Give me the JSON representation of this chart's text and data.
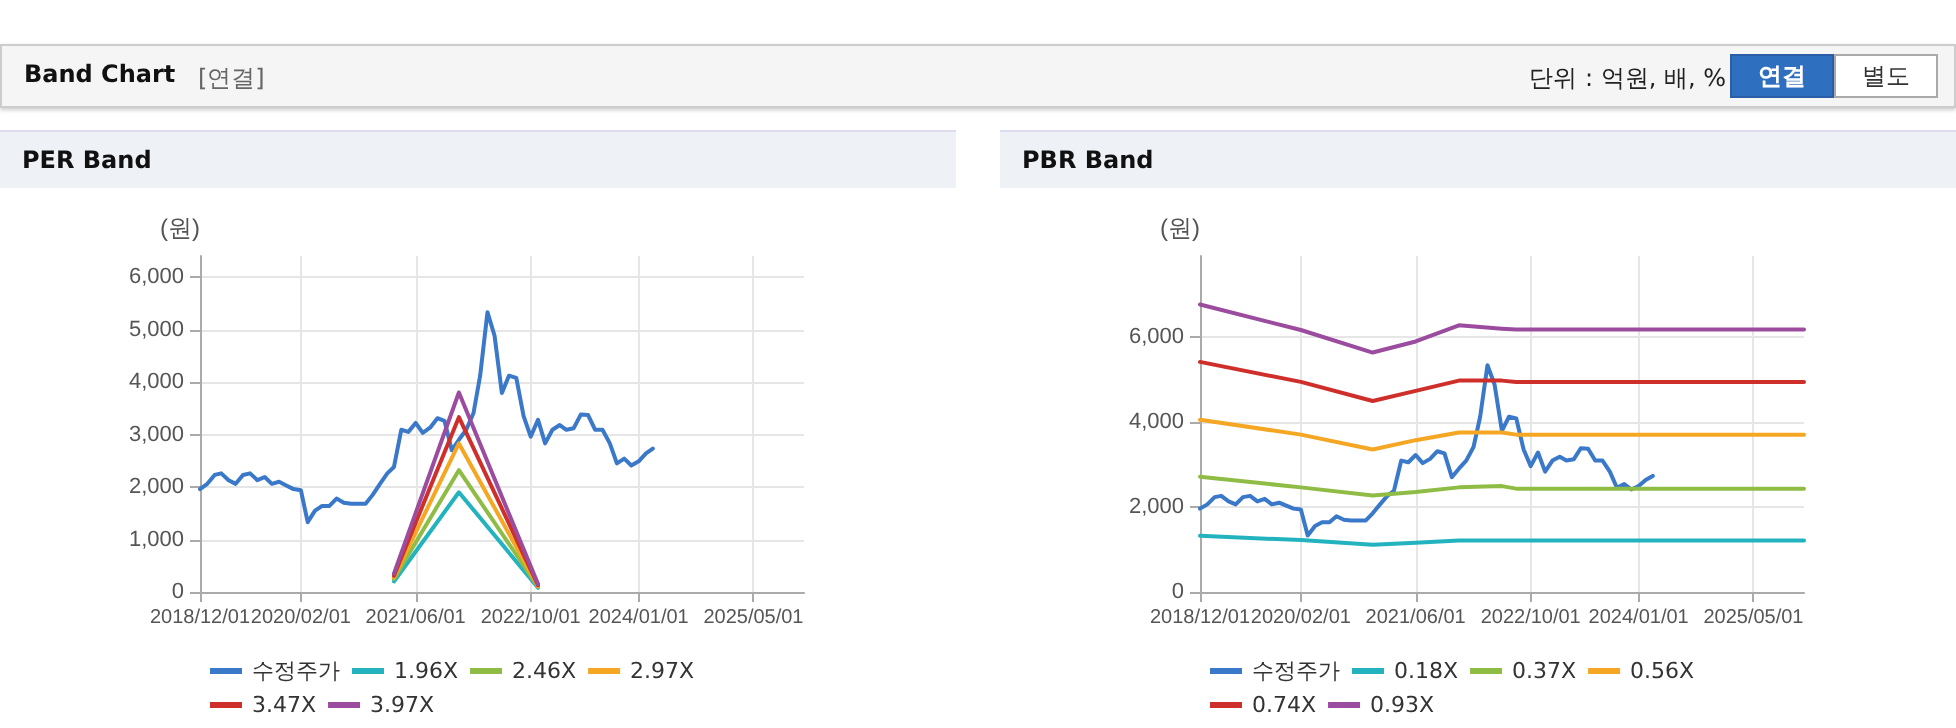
{
  "chart_data": [
    {
      "type": "other",
      "title": "Band Chart",
      "annotations": [
        "[연결]",
        "단위 : 억원, 배, %",
        "연결",
        "별도"
      ]
    },
    {
      "type": "line",
      "title": "PER Band",
      "ylabel": "(원)",
      "xlim": [
        "2018-12-01",
        "2025-12-01"
      ],
      "xticks": [
        {
          "value": "2018-12-01",
          "label": "2018/12/01"
        },
        {
          "value": "2020-02-01",
          "label": "2020/02/01"
        },
        {
          "value": "2021-06-01",
          "label": "2021/06/01"
        },
        {
          "value": "2022-10-01",
          "label": "2022/10/01"
        },
        {
          "value": "2024-01-01",
          "label": "2024/01/01"
        },
        {
          "value": "2025-05-01",
          "label": "2025/05/01"
        }
      ],
      "ylim": [
        0,
        6400
      ],
      "yticks": [
        {
          "value": 0,
          "label": "0"
        },
        {
          "value": 1000,
          "label": "1,000"
        },
        {
          "value": 2000,
          "label": "2,000"
        },
        {
          "value": 3000,
          "label": "3,000"
        },
        {
          "value": 4000,
          "label": "4,000"
        },
        {
          "value": 5000,
          "label": "5,000"
        },
        {
          "value": 6000,
          "label": "6,000"
        }
      ],
      "grid": true,
      "legend": "bottom",
      "marker": "none",
      "line_style": "solid",
      "series": [
        {
          "name": "수정주가",
          "color": "#3a78c9",
          "x": [
            "2018-12",
            "2019-01",
            "2019-02",
            "2019-03",
            "2019-04",
            "2019-05",
            "2019-06",
            "2019-07",
            "2019-08",
            "2019-09",
            "2019-10",
            "2019-11",
            "2019-12",
            "2020-01",
            "2020-02",
            "2020-03",
            "2020-04",
            "2020-05",
            "2020-06",
            "2020-07",
            "2020-08",
            "2020-09",
            "2020-10",
            "2020-11",
            "2020-12",
            "2021-01",
            "2021-02",
            "2021-03",
            "2021-04",
            "2021-05",
            "2021-06",
            "2021-07",
            "2021-08",
            "2021-09",
            "2021-10",
            "2021-11",
            "2021-12",
            "2022-01",
            "2022-02",
            "2022-03",
            "2022-04",
            "2022-05",
            "2022-06",
            "2022-07",
            "2022-08",
            "2022-09",
            "2022-10",
            "2022-11",
            "2022-12",
            "2023-01",
            "2023-02",
            "2023-03",
            "2023-04",
            "2023-05",
            "2023-06",
            "2023-07",
            "2023-08",
            "2023-09",
            "2023-10",
            "2023-11",
            "2023-12",
            "2024-01",
            "2024-02",
            "2024-03"
          ],
          "values": [
            1960,
            2060,
            2230,
            2260,
            2130,
            2060,
            2230,
            2260,
            2130,
            2190,
            2060,
            2100,
            2030,
            1960,
            1940,
            1330,
            1550,
            1640,
            1640,
            1780,
            1700,
            1680,
            1680,
            1680,
            1850,
            2060,
            2260,
            2380,
            3090,
            3050,
            3220,
            3030,
            3130,
            3310,
            3260,
            2700,
            2900,
            3090,
            3410,
            4120,
            5330,
            4880,
            3790,
            4120,
            4080,
            3350,
            2960,
            3280,
            2830,
            3090,
            3180,
            3090,
            3120,
            3380,
            3370,
            3090,
            3090,
            2830,
            2450,
            2540,
            2410,
            2490,
            2640,
            2730
          ]
        },
        {
          "name": "1.96X",
          "color": "#22b3bf",
          "x": [
            "2021-03",
            "2021-12",
            "2022-11"
          ],
          "values": [
            200,
            1900,
            80
          ]
        },
        {
          "name": "2.46X",
          "color": "#8fbc45",
          "x": [
            "2021-03",
            "2021-12",
            "2022-11"
          ],
          "values": [
            250,
            2320,
            100
          ]
        },
        {
          "name": "2.97X",
          "color": "#f5a623",
          "x": [
            "2021-03",
            "2021-12",
            "2022-11"
          ],
          "values": [
            280,
            2830,
            110
          ]
        },
        {
          "name": "3.47X",
          "color": "#cf2f2a",
          "x": [
            "2021-03",
            "2021-12",
            "2022-11"
          ],
          "values": [
            310,
            3330,
            130
          ]
        },
        {
          "name": "3.97X",
          "color": "#9b4c9e",
          "x": [
            "2021-03",
            "2021-12",
            "2022-11"
          ],
          "values": [
            350,
            3800,
            150
          ]
        }
      ]
    },
    {
      "type": "line",
      "title": "PBR Band",
      "ylabel": "(원)",
      "xlim": [
        "2018-12-01",
        "2025-12-01"
      ],
      "xticks": [
        {
          "value": "2018-12-01",
          "label": "2018/12/01"
        },
        {
          "value": "2020-02-01",
          "label": "2020/02/01"
        },
        {
          "value": "2021-06-01",
          "label": "2021/06/01"
        },
        {
          "value": "2022-10-01",
          "label": "2022/10/01"
        },
        {
          "value": "2024-01-01",
          "label": "2024/01/01"
        },
        {
          "value": "2025-05-01",
          "label": "2025/05/01"
        }
      ],
      "ylim": [
        0,
        7900
      ],
      "yticks": [
        {
          "value": 0,
          "label": "0"
        },
        {
          "value": 2000,
          "label": "2,000"
        },
        {
          "value": 4000,
          "label": "4,000"
        },
        {
          "value": 6000,
          "label": "6,000"
        }
      ],
      "grid": true,
      "legend": "bottom",
      "marker": "none",
      "line_style": "solid",
      "series": [
        {
          "name": "수정주가",
          "color": "#3a78c9",
          "x": [
            "2018-12",
            "2019-01",
            "2019-02",
            "2019-03",
            "2019-04",
            "2019-05",
            "2019-06",
            "2019-07",
            "2019-08",
            "2019-09",
            "2019-10",
            "2019-11",
            "2019-12",
            "2020-01",
            "2020-02",
            "2020-03",
            "2020-04",
            "2020-05",
            "2020-06",
            "2020-07",
            "2020-08",
            "2020-09",
            "2020-10",
            "2020-11",
            "2020-12",
            "2021-01",
            "2021-02",
            "2021-03",
            "2021-04",
            "2021-05",
            "2021-06",
            "2021-07",
            "2021-08",
            "2021-09",
            "2021-10",
            "2021-11",
            "2021-12",
            "2022-01",
            "2022-02",
            "2022-03",
            "2022-04",
            "2022-05",
            "2022-06",
            "2022-07",
            "2022-08",
            "2022-09",
            "2022-10",
            "2022-11",
            "2022-12",
            "2023-01",
            "2023-02",
            "2023-03",
            "2023-04",
            "2023-05",
            "2023-06",
            "2023-07",
            "2023-08",
            "2023-09",
            "2023-10",
            "2023-11",
            "2023-12",
            "2024-01",
            "2024-02",
            "2024-03"
          ],
          "values": [
            1960,
            2060,
            2230,
            2260,
            2130,
            2060,
            2230,
            2260,
            2130,
            2190,
            2060,
            2100,
            2030,
            1960,
            1940,
            1330,
            1550,
            1640,
            1640,
            1780,
            1700,
            1680,
            1680,
            1680,
            1850,
            2060,
            2260,
            2380,
            3090,
            3050,
            3220,
            3030,
            3130,
            3310,
            3260,
            2700,
            2900,
            3090,
            3410,
            4120,
            5330,
            4880,
            3790,
            4120,
            4080,
            3350,
            2960,
            3280,
            2830,
            3090,
            3180,
            3090,
            3120,
            3380,
            3370,
            3090,
            3090,
            2830,
            2450,
            2540,
            2410,
            2490,
            2640,
            2730
          ]
        },
        {
          "name": "0.18X",
          "color": "#22b3bf",
          "x": [
            "2018-12",
            "2020-02",
            "2020-12",
            "2021-06",
            "2021-12",
            "2022-06",
            "2022-08",
            "2025-12"
          ],
          "values": [
            1320,
            1220,
            1110,
            1160,
            1210,
            1210,
            1210,
            1210
          ]
        },
        {
          "name": "0.37X",
          "color": "#8fbc45",
          "x": [
            "2018-12",
            "2020-02",
            "2020-12",
            "2021-06",
            "2021-12",
            "2022-06",
            "2022-08",
            "2025-12"
          ],
          "values": [
            2710,
            2460,
            2270,
            2350,
            2460,
            2490,
            2430,
            2430
          ]
        },
        {
          "name": "0.56X",
          "color": "#f5a623",
          "x": [
            "2018-12",
            "2020-02",
            "2020-12",
            "2021-06",
            "2021-12",
            "2022-06",
            "2022-08",
            "2025-12"
          ],
          "values": [
            4050,
            3700,
            3350,
            3570,
            3750,
            3750,
            3700,
            3700
          ]
        },
        {
          "name": "0.74X",
          "color": "#cf2f2a",
          "x": [
            "2018-12",
            "2020-02",
            "2020-12",
            "2021-06",
            "2021-12",
            "2022-06",
            "2022-08",
            "2025-12"
          ],
          "values": [
            5410,
            4940,
            4490,
            4730,
            4970,
            4970,
            4940,
            4940
          ]
        },
        {
          "name": "0.93X",
          "color": "#9b4c9e",
          "x": [
            "2018-12",
            "2020-02",
            "2020-12",
            "2021-06",
            "2021-12",
            "2022-06",
            "2022-08",
            "2025-12"
          ],
          "values": [
            6760,
            6160,
            5630,
            5890,
            6270,
            6190,
            6170,
            6170
          ]
        }
      ]
    }
  ]
}
